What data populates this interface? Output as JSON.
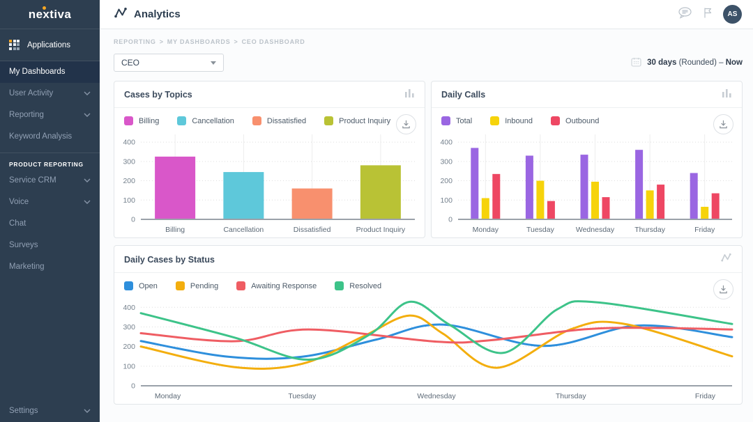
{
  "sidebar": {
    "logo_text": "nextiva",
    "applications_label": "Applications",
    "items": [
      {
        "label": "My Dashboards",
        "active": true,
        "chevron": false
      },
      {
        "label": "User Activity",
        "active": false,
        "chevron": true
      },
      {
        "label": "Reporting",
        "active": false,
        "chevron": true
      },
      {
        "label": "Keyword Analysis",
        "active": false,
        "chevron": false
      }
    ],
    "section_header": "PRODUCT REPORTING",
    "product_items": [
      {
        "label": "Service CRM",
        "chevron": true
      },
      {
        "label": "Voice",
        "chevron": true
      },
      {
        "label": "Chat",
        "chevron": false
      },
      {
        "label": "Surveys",
        "chevron": false
      },
      {
        "label": "Marketing",
        "chevron": false
      }
    ],
    "settings_label": "Settings"
  },
  "header": {
    "title": "Analytics",
    "avatar_initials": "AS",
    "icons": [
      "chat-bubble-icon",
      "flag-icon"
    ]
  },
  "toolbar": {
    "breadcrumb_parts": [
      "REPORTING",
      "MY DASHBOARDS",
      "CEO DASHBOARD"
    ],
    "dashboard_select_value": "CEO",
    "date_range": {
      "days": "30 days",
      "rounded": "(Rounded)",
      "separator": "–",
      "end": "Now"
    }
  },
  "colors": {
    "sidebar_bg": "#2d3e50",
    "accent_orange": "#f5a623",
    "avatar_bg": "#3d5268"
  },
  "chart_data": [
    {
      "type": "bar",
      "title": "Cases by Topics",
      "corner_icon": "bar-chart-icon",
      "categories": [
        "Billing",
        "Cancellation",
        "Dissatisfied",
        "Product Inquiry"
      ],
      "values": [
        325,
        245,
        160,
        280
      ],
      "colors": [
        "#d957c9",
        "#5ec8da",
        "#f8906e",
        "#b9c235"
      ],
      "ylim": [
        0,
        440
      ],
      "yticks": [
        0,
        100,
        200,
        300,
        400
      ],
      "grid": "horizontal-dotted and vertical category lines",
      "legend_position": "top-left"
    },
    {
      "type": "grouped-bar",
      "title": "Daily Calls",
      "corner_icon": "bar-chart-icon",
      "categories": [
        "Monday",
        "Tuesday",
        "Wednesday",
        "Thursday",
        "Friday"
      ],
      "series": [
        {
          "name": "Total",
          "color": "#9a66e2",
          "values": [
            370,
            330,
            335,
            360,
            240
          ]
        },
        {
          "name": "Inbound",
          "color": "#f6d30b",
          "values": [
            110,
            200,
            195,
            150,
            65
          ]
        },
        {
          "name": "Outbound",
          "color": "#ee4763",
          "values": [
            235,
            95,
            115,
            180,
            135
          ]
        }
      ],
      "ylim": [
        0,
        440
      ],
      "yticks": [
        0,
        100,
        200,
        300,
        400
      ],
      "grid": "horizontal-dotted and vertical category lines",
      "legend_position": "top-left"
    },
    {
      "type": "line",
      "title": "Daily Cases by Status",
      "corner_icon": "line-chart-icon",
      "categories": [
        "Monday",
        "Tuesday",
        "Wednesday",
        "Thursday",
        "Friday"
      ],
      "x_domain": [
        -0.2,
        4.2
      ],
      "series": [
        {
          "name": "Open",
          "color": "#2e8fdc",
          "points": [
            [
              -0.2,
              228
            ],
            [
              0.45,
              148
            ],
            [
              1.0,
              148
            ],
            [
              1.55,
              235
            ],
            [
              2.05,
              312
            ],
            [
              2.8,
              203
            ],
            [
              3.5,
              307
            ],
            [
              4.2,
              248
            ]
          ]
        },
        {
          "name": "Pending",
          "color": "#f3ae0e",
          "points": [
            [
              -0.2,
              200
            ],
            [
              0.5,
              95
            ],
            [
              1.0,
              112
            ],
            [
              1.45,
              250
            ],
            [
              1.8,
              358
            ],
            [
              2.05,
              265
            ],
            [
              2.45,
              92
            ],
            [
              3.0,
              288
            ],
            [
              3.4,
              315
            ],
            [
              4.2,
              150
            ]
          ]
        },
        {
          "name": "Awaiting Response",
          "color": "#ef5d63",
          "points": [
            [
              -0.2,
              268
            ],
            [
              0.5,
              227
            ],
            [
              1.05,
              287
            ],
            [
              2.0,
              225
            ],
            [
              2.4,
              232
            ],
            [
              3.1,
              288
            ],
            [
              3.6,
              295
            ],
            [
              4.2,
              287
            ]
          ]
        },
        {
          "name": "Resolved",
          "color": "#3dc389",
          "points": [
            [
              -0.2,
              370
            ],
            [
              0.5,
              245
            ],
            [
              1.05,
              133
            ],
            [
              1.5,
              260
            ],
            [
              1.8,
              428
            ],
            [
              2.1,
              310
            ],
            [
              2.5,
              168
            ],
            [
              2.9,
              390
            ],
            [
              3.2,
              425
            ],
            [
              4.2,
              315
            ]
          ]
        }
      ],
      "ylim": [
        0,
        440
      ],
      "yticks": [
        0,
        100,
        200,
        300,
        400
      ],
      "grid": "horizontal-dotted only",
      "legend_position": "top-left"
    }
  ]
}
